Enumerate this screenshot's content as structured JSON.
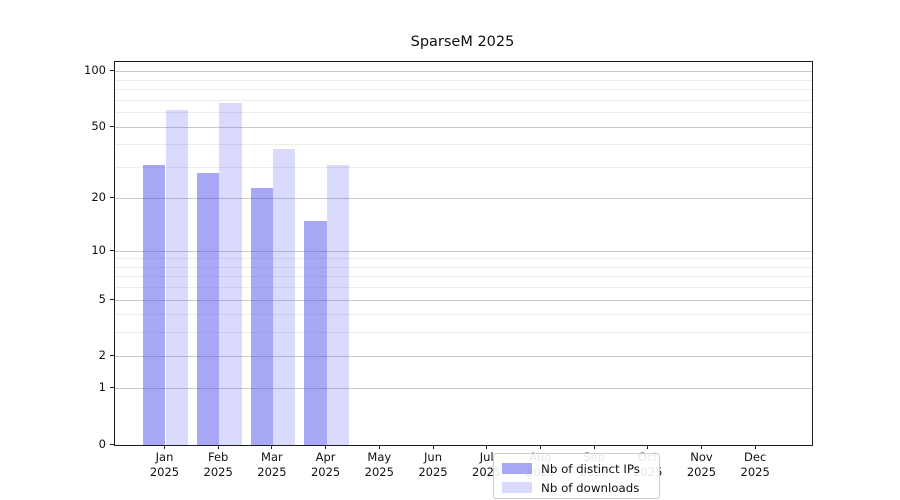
{
  "title": "SparseM 2025",
  "chart_data": {
    "type": "bar",
    "title": "SparseM 2025",
    "categories": [
      "Jan",
      "Feb",
      "Mar",
      "Apr",
      "May",
      "Jun",
      "Jul",
      "Aug",
      "Sep",
      "Oct",
      "Nov",
      "Dec"
    ],
    "year_label": "2025",
    "series": [
      {
        "name": "Nb of distinct IPs",
        "color": "rgba(85,85,240,0.51)",
        "values": [
          31,
          28,
          23,
          15,
          null,
          null,
          null,
          null,
          null,
          null,
          null,
          null
        ]
      },
      {
        "name": "Nb of downloads",
        "color": "rgba(85,85,240,0.22)",
        "values": [
          62,
          68,
          38,
          31,
          null,
          null,
          null,
          null,
          null,
          null,
          null,
          null
        ]
      }
    ],
    "yscale": "log1p",
    "ylim": [
      0,
      100
    ],
    "yticks": [
      0,
      1,
      2,
      5,
      10,
      20,
      50,
      100
    ],
    "yticks_minor": [
      3,
      4,
      6,
      7,
      8,
      9,
      30,
      40,
      60,
      70,
      80,
      90
    ],
    "grid": "horizontal",
    "legend_position": "lower-center",
    "colors": {
      "bar_distinct_ips_rendered": "#a8a8f4",
      "bar_downloads_rendered": "#d9d9f9",
      "gridline_major": "#c9c9c9",
      "gridline_minor": "#ececec",
      "axis_spine": "#1c1c1c"
    }
  }
}
